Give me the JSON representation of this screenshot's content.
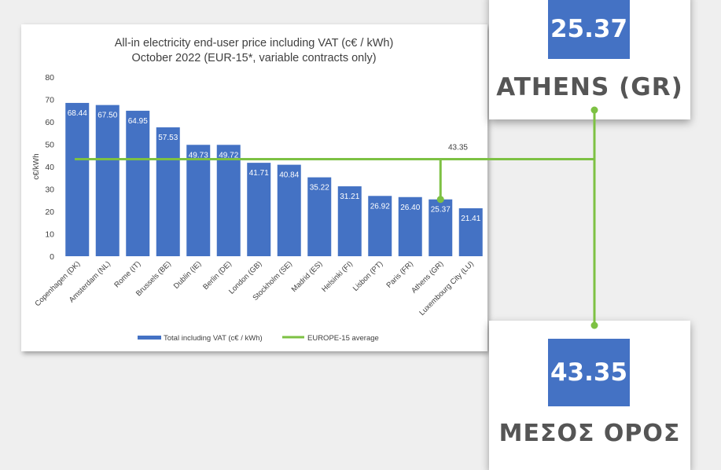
{
  "chart_data": {
    "type": "bar",
    "title": "All-in electricity end-user price including VAT (c€ / kWh)",
    "subtitle": "October 2022 (EUR-15*, variable contracts only)",
    "ylabel": "c€/kWh",
    "ylim": [
      0,
      80
    ],
    "yticks": [
      0,
      10,
      20,
      30,
      40,
      50,
      60,
      70,
      80
    ],
    "categories": [
      "Copenhagen (DK)",
      "Amsterdam (NL)",
      "Rome (IT)",
      "Brussels (BE)",
      "Dublin (IE)",
      "Berlin (DE)",
      "London (GB)",
      "Stockholm (SE)",
      "Madrid (ES)",
      "Helsinki (FI)",
      "Lisbon (PT)",
      "Paris (FR)",
      "Athens (GR)",
      "Luxembourg City (LU)"
    ],
    "series": [
      {
        "name": "Total including VAT (c€ / kWh)",
        "values": [
          68.44,
          67.5,
          64.95,
          57.53,
          49.73,
          49.72,
          41.71,
          40.84,
          35.22,
          31.21,
          26.92,
          26.4,
          25.37,
          21.41
        ]
      }
    ],
    "average": {
      "name": "EUROPE-15 average",
      "value": 43.35,
      "label": "43.35"
    },
    "value_labels": [
      "68.44",
      "67.50",
      "64.95",
      "57.53",
      "49.73",
      "49.72",
      "41.71",
      "40.84",
      "35.22",
      "31.21",
      "26.92",
      "26.40",
      "25.37",
      "21.41"
    ],
    "legend_position": "bottom",
    "grid": false,
    "bar_color": "#4472c4",
    "line_color": "#7dc143"
  },
  "cards": {
    "athens": {
      "value": "25.37",
      "label": "ATHENS (GR)"
    },
    "average": {
      "value": "43.35",
      "label": "ΜΕΣΟΣ ΟΡΟΣ"
    }
  },
  "colors": {
    "accent": "#4472c4",
    "connector": "#7dc143",
    "label_text": "#555555"
  }
}
